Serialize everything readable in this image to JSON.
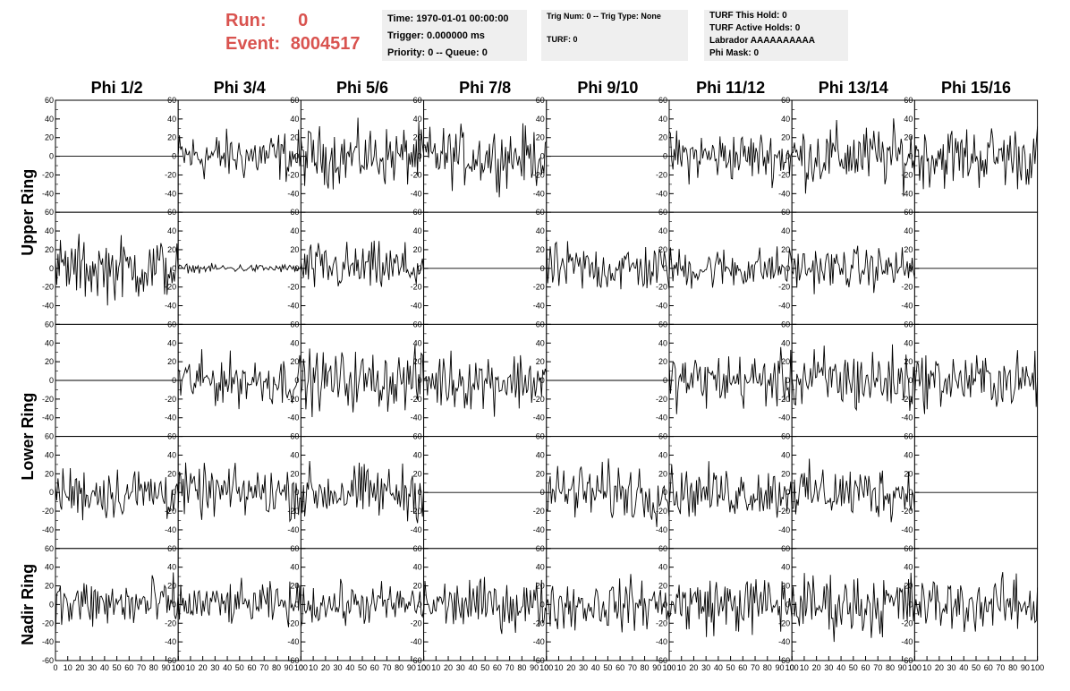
{
  "header": {
    "run_label": "Run:",
    "run_value": "0",
    "event_label": "Event:",
    "event_value": "8004517"
  },
  "info_time": {
    "time": "Time: 1970-01-01 00:00:00",
    "trigger": "Trigger: 0.000000 ms",
    "priority": "Priority: 0 -- Queue: 0"
  },
  "info_trig": {
    "trig": "Trig Num: 0 -- Trig Type: None",
    "turf": "TURF: 0"
  },
  "info_turf": {
    "this_hold": "TURF This Hold: 0",
    "active_holds": "TURF Active Holds: 0",
    "labrador": "Labrador AAAAAAAAAA",
    "phi_mask": "Phi Mask: 0"
  },
  "chart_data": {
    "type": "line",
    "columns": [
      "Phi 1/2",
      "Phi 3/4",
      "Phi 5/6",
      "Phi 7/8",
      "Phi 9/10",
      "Phi 11/12",
      "Phi 13/14",
      "Phi 15/16"
    ],
    "ring_labels": [
      {
        "label": "Upper Ring",
        "rows": [
          0,
          1
        ]
      },
      {
        "label": "Lower Ring",
        "rows": [
          2,
          3
        ]
      },
      {
        "label": "Nadir Ring",
        "rows": [
          4
        ]
      }
    ],
    "xlim": [
      0,
      100
    ],
    "ylim": [
      -60,
      60
    ],
    "x_ticks": [
      "0",
      "10",
      "20",
      "30",
      "40",
      "50",
      "60",
      "70",
      "80",
      "90",
      "100"
    ],
    "y_ticks": [
      "-60",
      "-40",
      "-20",
      "0",
      "20",
      "40",
      "60"
    ],
    "n_samples": 100,
    "amplitude": [
      [
        0,
        12,
        14,
        14,
        0,
        12,
        15,
        15
      ],
      [
        15,
        2,
        12,
        0,
        12,
        10,
        10,
        0
      ],
      [
        0,
        12,
        14,
        14,
        0,
        13,
        16,
        13
      ],
      [
        13,
        12,
        13,
        0,
        14,
        12,
        13,
        0
      ],
      [
        13,
        10,
        10,
        12,
        12,
        14,
        15,
        13
      ]
    ]
  }
}
